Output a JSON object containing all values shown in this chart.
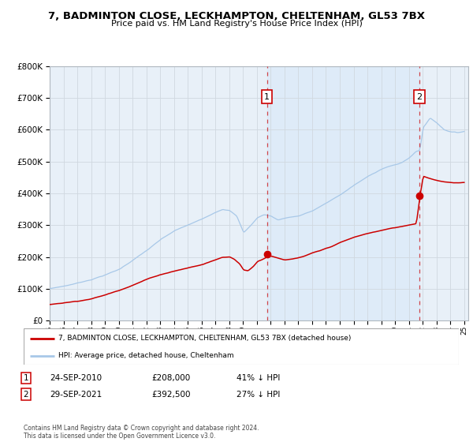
{
  "title": "7, BADMINTON CLOSE, LECKHAMPTON, CHELTENHAM, GL53 7BX",
  "subtitle": "Price paid vs. HM Land Registry's House Price Index (HPI)",
  "legend_line1": "7, BADMINTON CLOSE, LECKHAMPTON, CHELTENHAM, GL53 7BX (detached house)",
  "legend_line2": "HPI: Average price, detached house, Cheltenham",
  "note1_date": "24-SEP-2010",
  "note1_price": "£208,000",
  "note1_hpi": "41% ↓ HPI",
  "note2_date": "29-SEP-2021",
  "note2_price": "£392,500",
  "note2_hpi": "27% ↓ HPI",
  "footer": "Contains HM Land Registry data © Crown copyright and database right 2024.\nThis data is licensed under the Open Government Licence v3.0.",
  "hpi_color": "#a8c8e8",
  "price_color": "#cc0000",
  "bg_color": "#ffffff",
  "plot_bg_color": "#e8f0f8",
  "grid_color": "#d0d8e0",
  "span_color": "#d8e8f8",
  "year_start": 1995,
  "year_end": 2025,
  "ylim_max": 800000,
  "sale1_year": 2010.73,
  "sale1_price": 208000,
  "sale2_year": 2021.75,
  "sale2_price": 392500
}
